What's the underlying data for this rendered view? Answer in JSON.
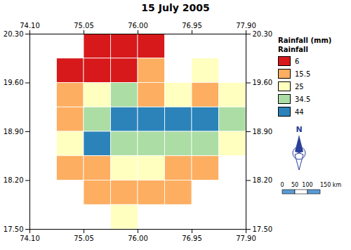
{
  "chart_data": {
    "type": "heatmap",
    "title": "15 July 2005",
    "xlim": [
      74.1,
      77.9
    ],
    "ylim": [
      17.5,
      20.3
    ],
    "xticks": [
      {
        "value": 74.1,
        "label": "74.10"
      },
      {
        "value": 75.05,
        "label": "75.05"
      },
      {
        "value": 76.0,
        "label": "76.00"
      },
      {
        "value": 76.95,
        "label": "76.95"
      },
      {
        "value": 77.9,
        "label": "77.90"
      }
    ],
    "yticks": [
      {
        "value": 17.5,
        "label": "17.50"
      },
      {
        "value": 18.2,
        "label": "18.20"
      },
      {
        "value": 18.9,
        "label": "18.90"
      },
      {
        "value": 19.6,
        "label": "19.60"
      },
      {
        "value": 20.3,
        "label": "20.30"
      }
    ],
    "x_edges": [
      74.1,
      74.575,
      75.05,
      75.525,
      76.0,
      76.475,
      76.95,
      77.425,
      77.9
    ],
    "y_edges": [
      17.5,
      17.85,
      18.2,
      18.55,
      18.9,
      19.25,
      19.6,
      19.95,
      20.3
    ],
    "cells": [
      [
        null,
        null,
        6,
        6,
        6,
        null,
        null,
        null
      ],
      [
        null,
        6,
        6,
        6,
        15.5,
        null,
        25,
        null
      ],
      [
        null,
        15.5,
        25,
        34.5,
        15.5,
        25,
        15.5,
        25
      ],
      [
        null,
        15.5,
        34.5,
        44,
        44,
        44,
        44,
        34.5
      ],
      [
        null,
        25,
        44,
        34.5,
        34.5,
        34.5,
        34.5,
        25
      ],
      [
        null,
        15.5,
        15.5,
        25,
        25,
        15.5,
        15.5,
        null
      ],
      [
        null,
        null,
        15.5,
        15.5,
        15.5,
        15.5,
        null,
        null
      ],
      [
        null,
        null,
        null,
        25,
        null,
        null,
        null,
        null
      ]
    ],
    "legend_titles": [
      "Rainfall (mm)",
      "Rainfall"
    ],
    "color_levels": [
      6,
      15.5,
      25,
      34.5,
      44
    ],
    "level_colors": [
      "#d7191c",
      "#fdae61",
      "#ffffbf",
      "#abdda4",
      "#2b83ba"
    ],
    "north_label": "N",
    "scale_labels": [
      "0",
      "50",
      "100",
      "150 km"
    ]
  }
}
